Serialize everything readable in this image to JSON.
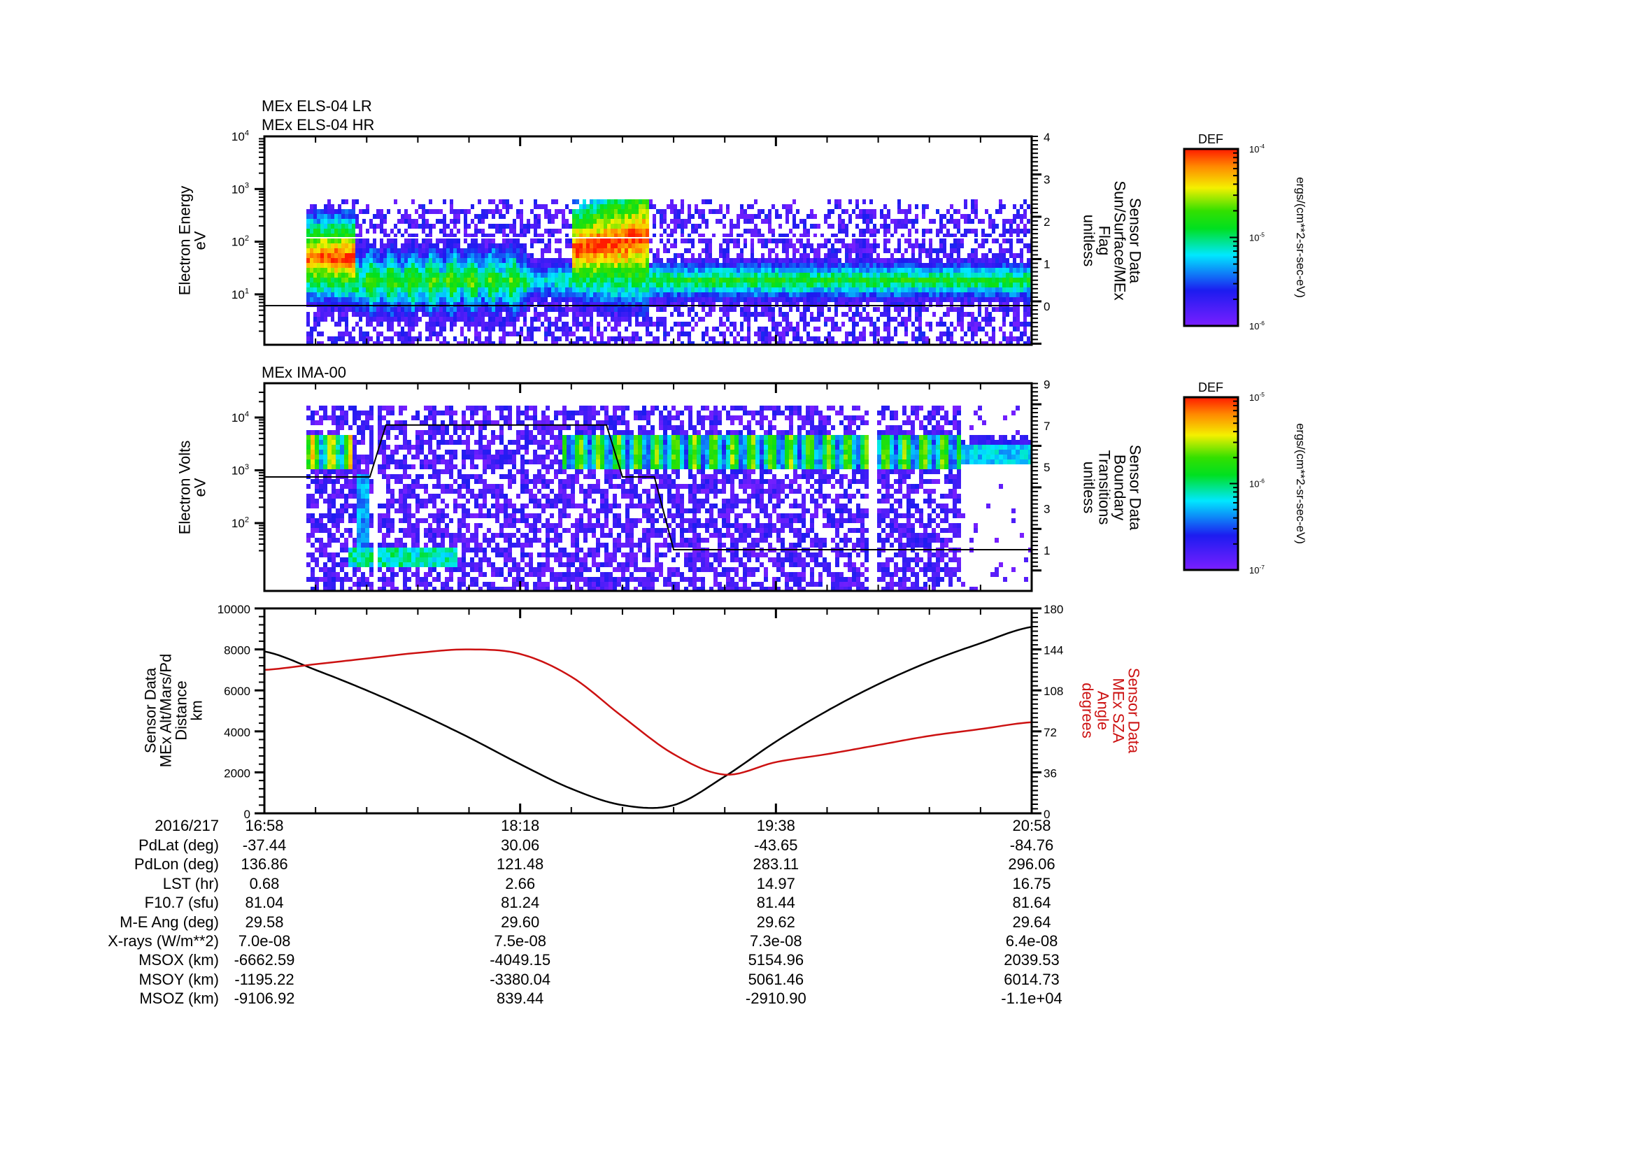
{
  "panels": [
    {
      "id": "els",
      "titles": [
        "MEx ELS-04 LR",
        "MEx ELS-04 HR"
      ],
      "ylabel": [
        "Electron Energy",
        "eV"
      ],
      "yticks": [
        "10^4",
        "10^3",
        "10^2",
        "10^1"
      ],
      "right_ylabel": [
        "Sensor Data",
        "Sun/Surface/MEx",
        "Flag",
        "unitless"
      ],
      "right_yticks": [
        "4",
        "3",
        "2",
        "1",
        "0"
      ],
      "colorbar": {
        "title": "DEF",
        "ticks": [
          "10^-4",
          "10^-5",
          "10^-6"
        ],
        "unit": "ergs/(cm**2-sr-sec-eV)"
      }
    },
    {
      "id": "ima",
      "titles": [
        "MEx IMA-00"
      ],
      "ylabel": [
        "Electron Volts",
        "eV"
      ],
      "yticks": [
        "10^4",
        "10^3",
        "10^2"
      ],
      "right_ylabel": [
        "Sensor Data",
        "Boundary",
        "Transitions",
        "unitless"
      ],
      "right_yticks": [
        "9",
        "7",
        "5",
        "3",
        "1"
      ],
      "colorbar": {
        "title": "DEF",
        "ticks": [
          "10^-5",
          "10^-6",
          "10^-7"
        ],
        "unit": "ergs/(cm**2-sr-sec-eV)"
      }
    },
    {
      "id": "orbit",
      "ylabel": [
        "Sensor Data",
        "MEx Alt/Mars/Pd",
        "Distance",
        "km"
      ],
      "yticks": [
        "10000",
        "8000",
        "6000",
        "4000",
        "2000",
        "0"
      ],
      "right_ylabel": [
        "Sensor Data",
        "MEx SZA",
        "Angle",
        "degrees"
      ],
      "right_yticks": [
        "180",
        "144",
        "108",
        "72",
        "36",
        "0"
      ],
      "right_color": "#cc1111"
    }
  ],
  "chart_data": [
    {
      "type": "heatmap",
      "title": "MEx ELS-04 LR / MEx ELS-04 HR",
      "ylabel": "Electron Energy (eV)",
      "yscale": "log",
      "ylim": [
        1,
        10000
      ],
      "x": [
        "16:58",
        "18:18",
        "19:38",
        "20:58"
      ],
      "colorbar": {
        "label": "DEF ergs/(cm**2-sr-sec-eV)",
        "range": [
          1e-06,
          0.0001
        ],
        "scale": "log"
      },
      "overlay": {
        "name": "Sensor Data Sun/Surface/MEx Flag (unitless)",
        "ylim": [
          -0.9,
          4
        ],
        "values_approx": [
          0,
          0,
          0,
          0
        ]
      },
      "features": [
        "Intense (red) 20-150 eV electrons from ~17:06 to ~17:20",
        "Broadband green 10-100 eV emission 17:20-18:25",
        "Intense red band 30-300 eV from ~18:33 to ~18:57 reaching ~1 keV near 18:55",
        "Steady green band ~10-50 eV from ~18:59 to 20:58"
      ]
    },
    {
      "type": "heatmap",
      "title": "MEx IMA-00",
      "ylabel": "Electron Volts (eV)",
      "yscale": "log",
      "ylim": [
        20,
        40000
      ],
      "x": [
        "16:58",
        "18:18",
        "19:38",
        "20:58"
      ],
      "colorbar": {
        "label": "DEF ergs/(cm**2-sr-sec-eV)",
        "range": [
          1e-07,
          1e-05
        ],
        "scale": "log"
      },
      "overlay": {
        "name": "Sensor Data Boundary Transitions (unitless)",
        "ylim": [
          0,
          9
        ],
        "steps": [
          {
            "time": "16:58",
            "value": 4.5
          },
          {
            "time": "17:31",
            "value": 4.5
          },
          {
            "time": "17:36",
            "value": 7
          },
          {
            "time": "18:45",
            "value": 7
          },
          {
            "time": "18:50",
            "value": 4.5
          },
          {
            "time": "19:00",
            "value": 4.5
          },
          {
            "time": "19:06",
            "value": 1
          },
          {
            "time": "20:58",
            "value": 1
          }
        ]
      },
      "features": [
        "Solar wind ion beam ~2-3 keV 17:07-17:20",
        "Low-energy ions ~30-60 eV 17:33-18:02",
        "Solar wind beam ~2-4 keV 18:53-20:58"
      ]
    },
    {
      "type": "line",
      "title": "",
      "xlabel": "",
      "x": [
        "16:58",
        "17:14",
        "17:30",
        "17:46",
        "18:02",
        "18:18",
        "18:34",
        "18:50",
        "19:06",
        "19:22",
        "19:38",
        "19:54",
        "20:10",
        "20:26",
        "20:42",
        "20:58"
      ],
      "series": [
        {
          "name": "Sensor Data MEx Alt/Mars/Pd Distance (km)",
          "axis": "left",
          "color": "#000000",
          "values": [
            7900,
            7000,
            6000,
            4900,
            3700,
            2400,
            1200,
            400,
            400,
            1800,
            3500,
            5000,
            6300,
            7400,
            8300,
            9100
          ]
        },
        {
          "name": "Sensor Data MEx SZA Angle (degrees)",
          "axis": "right",
          "color": "#cc1111",
          "values": [
            126,
            131,
            136,
            141,
            144,
            140,
            120,
            85,
            52,
            34,
            45,
            52,
            60,
            68,
            74,
            80
          ]
        }
      ],
      "ylim": [
        0,
        10000
      ],
      "ylim_right": [
        0,
        180
      ],
      "ylabel": "Sensor Data MEx Alt/Mars/Pd Distance km",
      "ylabel_right": "Sensor Data MEx SZA Angle degrees"
    }
  ],
  "time_axis": {
    "date": "2016/217",
    "ticks": [
      "16:58",
      "18:18",
      "19:38",
      "20:58"
    ]
  },
  "annotations": {
    "rows": [
      {
        "label": "PdLat (deg)",
        "values": [
          "-37.44",
          "30.06",
          "-43.65",
          "-84.76"
        ]
      },
      {
        "label": "PdLon (deg)",
        "values": [
          "136.86",
          "121.48",
          "283.11",
          "296.06"
        ]
      },
      {
        "label": "LST (hr)",
        "values": [
          "0.68",
          "2.66",
          "14.97",
          "16.75"
        ]
      },
      {
        "label": "F10.7 (sfu)",
        "values": [
          "81.04",
          "81.24",
          "81.44",
          "81.64"
        ]
      },
      {
        "label": "M-E Ang (deg)",
        "values": [
          "29.58",
          "29.60",
          "29.62",
          "29.64"
        ]
      },
      {
        "label": "X-rays (W/m**2)",
        "values": [
          "7.0e-08",
          "7.5e-08",
          "7.3e-08",
          "6.4e-08"
        ]
      },
      {
        "label": "MSOX (km)",
        "values": [
          "-6662.59",
          "-4049.15",
          "5154.96",
          "2039.53"
        ]
      },
      {
        "label": "MSOY (km)",
        "values": [
          "-1195.22",
          "-3380.04",
          "5061.46",
          "6014.73"
        ]
      },
      {
        "label": "MSOZ (km)",
        "values": [
          "-9106.92",
          "839.44",
          "-2910.90",
          "-1.1e+04"
        ]
      }
    ]
  }
}
